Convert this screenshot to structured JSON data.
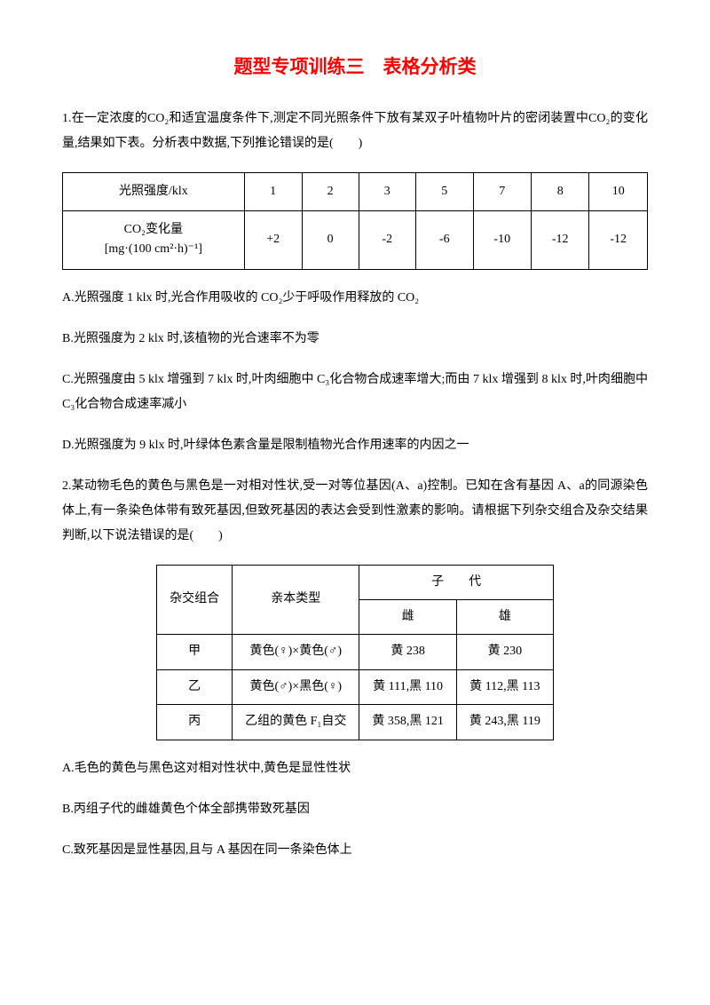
{
  "title": "题型专项训练三　表格分析类",
  "q1": {
    "intro": "1.在一定浓度的CO₂和适宜温度条件下,测定不同光照条件下放有某双子叶植物叶片的密闭装置中CO₂的变化量,结果如下表。分析表中数据,下列推论错误的是(　　)",
    "row1_label": "光照强度/klx",
    "row1": [
      "1",
      "2",
      "3",
      "5",
      "7",
      "8",
      "10"
    ],
    "row2_label_top": "CO₂变化量",
    "row2_label_bot": "[mg·(100 cm²·h)⁻¹]",
    "row2": [
      "+2",
      "0",
      "-2",
      "-6",
      "-10",
      "-12",
      "-12"
    ],
    "A": "A.光照强度 1 klx 时,光合作用吸收的 CO₂少于呼吸作用释放的 CO₂",
    "B": "B.光照强度为 2 klx 时,该植物的光合速率不为零",
    "C": "C.光照强度由 5 klx 增强到 7 klx 时,叶肉细胞中 C₃化合物合成速率增大;而由 7 klx 增强到 8 klx 时,叶肉细胞中 C₃化合物合成速率减小",
    "D": "D.光照强度为 9 klx 时,叶绿体色素含量是限制植物光合作用速率的内因之一"
  },
  "q2": {
    "intro": "2.某动物毛色的黄色与黑色是一对相对性状,受一对等位基因(A、a)控制。已知在含有基因 A、a的同源染色体上,有一条染色体带有致死基因,但致死基因的表达会受到性激素的影响。请根据下列杂交组合及杂交结果判断,以下说法错误的是(　　)",
    "h1": "杂交组合",
    "h2": "亲本类型",
    "h3": "子　　代",
    "h3a": "雌",
    "h3b": "雄",
    "r1": [
      "甲",
      "黄色(♀)×黄色(♂)",
      "黄 238",
      "黄 230"
    ],
    "r2": [
      "乙",
      "黄色(♂)×黑色(♀)",
      "黄 111,黑 110",
      "黄 112,黑 113"
    ],
    "r3": [
      "丙",
      "乙组的黄色 F₁自交",
      "黄 358,黑 121",
      "黄 243,黑 119"
    ],
    "A": "A.毛色的黄色与黑色这对相对性状中,黄色是显性性状",
    "B": "B.丙组子代的雌雄黄色个体全部携带致死基因",
    "C": "C.致死基因是显性基因,且与 A 基因在同一条染色体上"
  }
}
